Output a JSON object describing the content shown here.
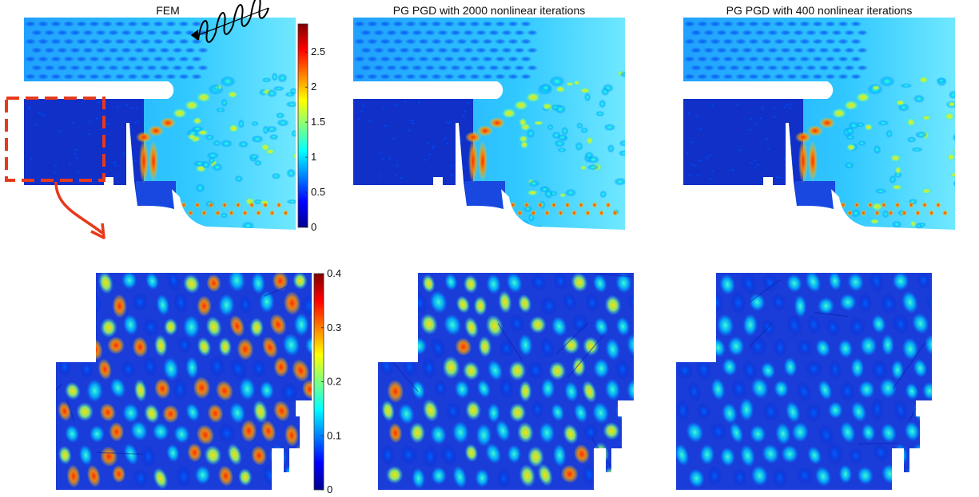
{
  "figure": {
    "panel_titles": [
      "FEM",
      "PG PGD with 2000 nonlinear iterations",
      "PG PGD with 400 nonlinear iterations"
    ]
  },
  "colormap": [
    "#00008f",
    "#0000ff",
    "#0080ff",
    "#00ffff",
    "#80ff80",
    "#ffff00",
    "#ff8000",
    "#ff0000",
    "#800000"
  ],
  "chart_data": [
    {
      "type": "heatmap",
      "title": "FEM",
      "scale": "top",
      "colorbar": {
        "range": [
          0,
          2.9
        ],
        "ticks": [
          0,
          0.5,
          1,
          1.5,
          2,
          2.5
        ],
        "tick_labels": [
          "0",
          "0.5",
          "1",
          "1.5",
          "2",
          "2.5"
        ]
      },
      "annotations": [
        "incident-wave",
        "zoom-region-box",
        "zoom-arrow"
      ]
    },
    {
      "type": "heatmap",
      "title": "PG PGD with 2000 nonlinear iterations",
      "scale": "top"
    },
    {
      "type": "heatmap",
      "title": "PG PGD with 400 nonlinear iterations",
      "scale": "top"
    },
    {
      "type": "heatmap",
      "title": "",
      "scale": "zoom",
      "colorbar": {
        "range": [
          0,
          0.4
        ],
        "ticks": [
          0,
          0.1,
          0.2,
          0.3,
          0.4
        ],
        "tick_labels": [
          "0",
          "0.1",
          "0.2",
          "0.3",
          "0.4"
        ]
      }
    },
    {
      "type": "heatmap",
      "title": "",
      "scale": "zoom"
    },
    {
      "type": "heatmap",
      "title": "",
      "scale": "zoom"
    }
  ]
}
